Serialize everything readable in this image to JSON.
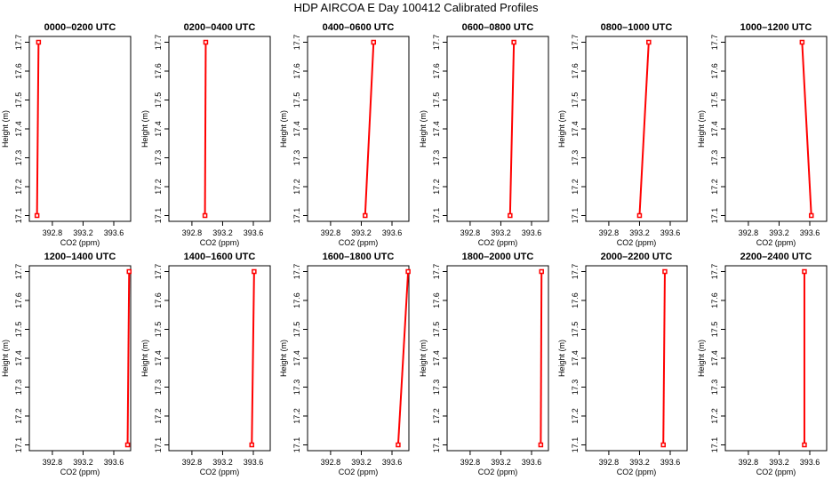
{
  "figure": {
    "suptitle": "HDP AIRCOA E  Day 100412  Calibrated Profiles",
    "xlabel": "CO2 (ppm)",
    "ylabel": "Height (m)",
    "line_color": "#ff0000",
    "marker_color": "#ff0000"
  },
  "chart_data": [
    {
      "type": "line",
      "title": "0000–0200 UTC",
      "xlabel": "CO2 (ppm)",
      "ylabel": "Height (m)",
      "xlim": [
        392.5,
        393.82
      ],
      "ylim": [
        17.08,
        17.72
      ],
      "xticks": [
        392.8,
        393.2,
        393.6
      ],
      "yticks": [
        17.1,
        17.2,
        17.3,
        17.4,
        17.5,
        17.6,
        17.7
      ],
      "series": [
        {
          "x": [
            392.62,
            392.6
          ],
          "y": [
            17.7,
            17.1
          ]
        }
      ]
    },
    {
      "type": "line",
      "title": "0200–0400 UTC",
      "xlabel": "CO2 (ppm)",
      "ylabel": "Height (m)",
      "xlim": [
        392.5,
        393.82
      ],
      "ylim": [
        17.08,
        17.72
      ],
      "xticks": [
        392.8,
        393.2,
        393.6
      ],
      "yticks": [
        17.1,
        17.2,
        17.3,
        17.4,
        17.5,
        17.6,
        17.7
      ],
      "series": [
        {
          "x": [
            392.98,
            392.97
          ],
          "y": [
            17.7,
            17.1
          ]
        }
      ]
    },
    {
      "type": "line",
      "title": "0400–0600 UTC",
      "xlabel": "CO2 (ppm)",
      "ylabel": "Height (m)",
      "xlim": [
        392.5,
        393.82
      ],
      "ylim": [
        17.08,
        17.72
      ],
      "xticks": [
        392.8,
        393.2,
        393.6
      ],
      "yticks": [
        17.1,
        17.2,
        17.3,
        17.4,
        17.5,
        17.6,
        17.7
      ],
      "series": [
        {
          "x": [
            393.36,
            393.25
          ],
          "y": [
            17.7,
            17.1
          ]
        }
      ]
    },
    {
      "type": "line",
      "title": "0600–0800 UTC",
      "xlabel": "CO2 (ppm)",
      "ylabel": "Height (m)",
      "xlim": [
        392.5,
        393.82
      ],
      "ylim": [
        17.08,
        17.72
      ],
      "xticks": [
        392.8,
        393.2,
        393.6
      ],
      "yticks": [
        17.1,
        17.2,
        17.3,
        17.4,
        17.5,
        17.6,
        17.7
      ],
      "series": [
        {
          "x": [
            393.37,
            393.32
          ],
          "y": [
            17.7,
            17.1
          ]
        }
      ]
    },
    {
      "type": "line",
      "title": "0800–1000 UTC",
      "xlabel": "CO2 (ppm)",
      "ylabel": "Height (m)",
      "xlim": [
        392.5,
        393.82
      ],
      "ylim": [
        17.08,
        17.72
      ],
      "xticks": [
        392.8,
        393.2,
        393.6
      ],
      "yticks": [
        17.1,
        17.2,
        17.3,
        17.4,
        17.5,
        17.6,
        17.7
      ],
      "series": [
        {
          "x": [
            393.32,
            393.2
          ],
          "y": [
            17.7,
            17.1
          ]
        }
      ]
    },
    {
      "type": "line",
      "title": "1000–1200 UTC",
      "xlabel": "CO2 (ppm)",
      "ylabel": "Height (m)",
      "xlim": [
        392.5,
        393.82
      ],
      "ylim": [
        17.08,
        17.72
      ],
      "xticks": [
        392.8,
        393.2,
        393.6
      ],
      "yticks": [
        17.1,
        17.2,
        17.3,
        17.4,
        17.5,
        17.6,
        17.7
      ],
      "series": [
        {
          "x": [
            393.5,
            393.62
          ],
          "y": [
            17.7,
            17.1
          ]
        }
      ]
    },
    {
      "type": "line",
      "title": "1200–1400 UTC",
      "xlabel": "CO2 (ppm)",
      "ylabel": "Height (m)",
      "xlim": [
        392.5,
        393.82
      ],
      "ylim": [
        17.08,
        17.72
      ],
      "xticks": [
        392.8,
        393.2,
        393.6
      ],
      "yticks": [
        17.1,
        17.2,
        17.3,
        17.4,
        17.5,
        17.6,
        17.7
      ],
      "series": [
        {
          "x": [
            393.8,
            393.78
          ],
          "y": [
            17.7,
            17.1
          ]
        }
      ]
    },
    {
      "type": "line",
      "title": "1400–1600 UTC",
      "xlabel": "CO2 (ppm)",
      "ylabel": "Height (m)",
      "xlim": [
        392.5,
        393.82
      ],
      "ylim": [
        17.08,
        17.72
      ],
      "xticks": [
        392.8,
        393.2,
        393.6
      ],
      "yticks": [
        17.1,
        17.2,
        17.3,
        17.4,
        17.5,
        17.6,
        17.7
      ],
      "series": [
        {
          "x": [
            393.61,
            393.58
          ],
          "y": [
            17.7,
            17.1
          ]
        }
      ]
    },
    {
      "type": "line",
      "title": "1600–1800 UTC",
      "xlabel": "CO2 (ppm)",
      "ylabel": "Height (m)",
      "xlim": [
        392.5,
        393.82
      ],
      "ylim": [
        17.08,
        17.72
      ],
      "xticks": [
        392.8,
        393.2,
        393.6
      ],
      "yticks": [
        17.1,
        17.2,
        17.3,
        17.4,
        17.5,
        17.6,
        17.7
      ],
      "series": [
        {
          "x": [
            393.81,
            393.68
          ],
          "y": [
            17.7,
            17.1
          ]
        }
      ]
    },
    {
      "type": "line",
      "title": "1800–2000 UTC",
      "xlabel": "CO2 (ppm)",
      "ylabel": "Height (m)",
      "xlim": [
        392.5,
        393.82
      ],
      "ylim": [
        17.08,
        17.72
      ],
      "xticks": [
        392.8,
        393.2,
        393.6
      ],
      "yticks": [
        17.1,
        17.2,
        17.3,
        17.4,
        17.5,
        17.6,
        17.7
      ],
      "series": [
        {
          "x": [
            393.73,
            393.72
          ],
          "y": [
            17.7,
            17.1
          ]
        }
      ]
    },
    {
      "type": "line",
      "title": "2000–2200 UTC",
      "xlabel": "CO2 (ppm)",
      "ylabel": "Height (m)",
      "xlim": [
        392.5,
        393.82
      ],
      "ylim": [
        17.08,
        17.72
      ],
      "xticks": [
        392.8,
        393.2,
        393.6
      ],
      "yticks": [
        17.1,
        17.2,
        17.3,
        17.4,
        17.5,
        17.6,
        17.7
      ],
      "series": [
        {
          "x": [
            393.53,
            393.51
          ],
          "y": [
            17.7,
            17.1
          ]
        }
      ]
    },
    {
      "type": "line",
      "title": "2200–2400 UTC",
      "xlabel": "CO2 (ppm)",
      "ylabel": "Height (m)",
      "xlim": [
        392.5,
        393.82
      ],
      "ylim": [
        17.08,
        17.72
      ],
      "xticks": [
        392.8,
        393.2,
        393.6
      ],
      "yticks": [
        17.1,
        17.2,
        17.3,
        17.4,
        17.5,
        17.6,
        17.7
      ],
      "series": [
        {
          "x": [
            393.53,
            393.53
          ],
          "y": [
            17.7,
            17.1
          ]
        }
      ]
    }
  ]
}
